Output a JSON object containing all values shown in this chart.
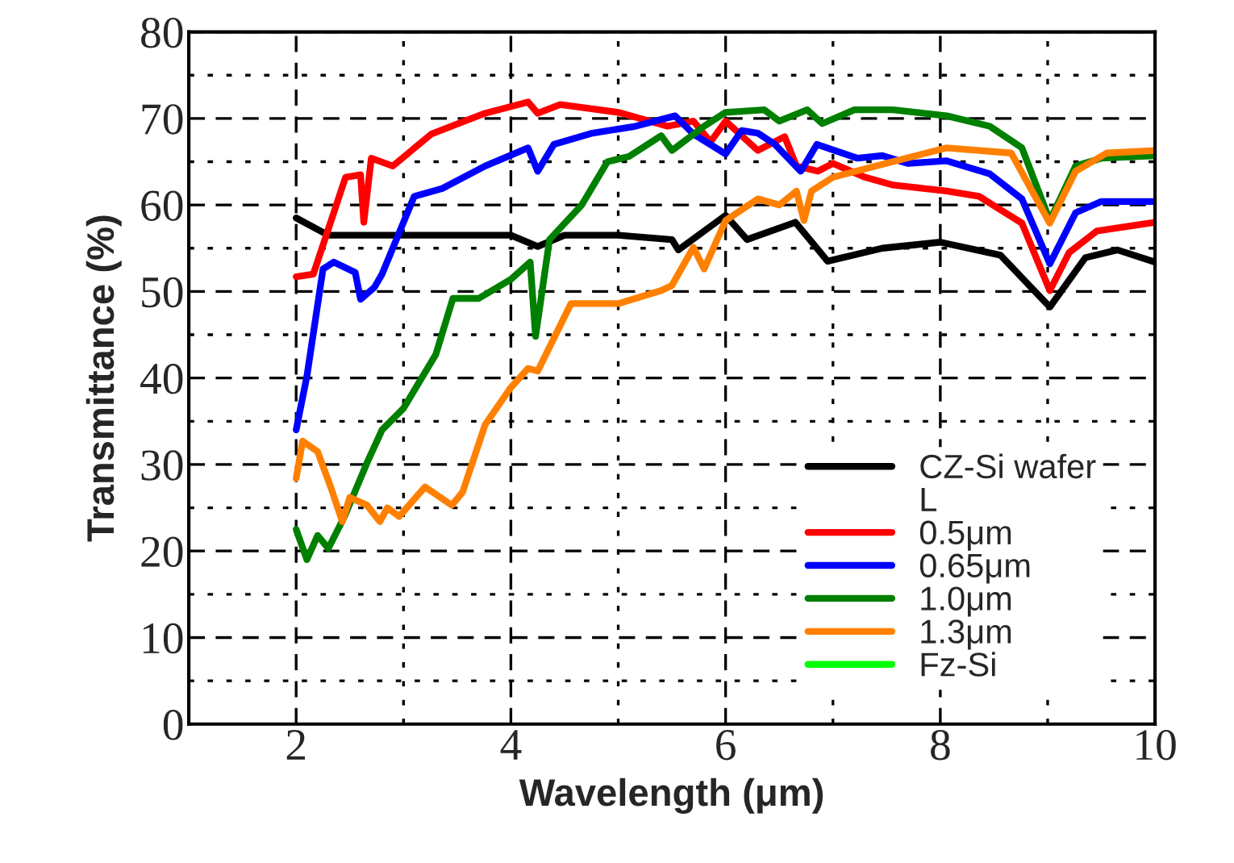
{
  "chart_data": {
    "type": "line",
    "xlabel": "Wavelength (μm)",
    "ylabel": "Transmittance (%)",
    "xlim": [
      1,
      10
    ],
    "xticks": [
      {
        "value": 1,
        "label": null
      },
      2,
      4,
      6,
      8,
      10
    ],
    "ylim": [
      0,
      80
    ],
    "yticks": [
      0,
      10,
      20,
      30,
      40,
      50,
      60,
      70,
      80
    ],
    "grid": true,
    "legend": "bottom right",
    "line_style": "solid",
    "series": [
      {
        "name": "CZ-Si wafer",
        "color": "#000000",
        "x": [
          2.0,
          2.3,
          3.0,
          4.0,
          4.25,
          4.5,
          5.0,
          5.5,
          5.56,
          6.0,
          6.2,
          6.65,
          6.95,
          7.46,
          8.0,
          8.56,
          9.02,
          9.35,
          9.65,
          10.0
        ],
        "values": [
          58.5,
          56.5,
          56.5,
          56.5,
          55.2,
          56.5,
          56.5,
          56.0,
          54.8,
          58.8,
          56.0,
          58.0,
          53.5,
          55.0,
          55.7,
          54.2,
          48.2,
          53.9,
          54.8,
          53.4
        ]
      },
      {
        "name": "L"
      },
      {
        "name": "0.5μm",
        "color": "#ff0000",
        "x": [
          2.0,
          2.16,
          2.46,
          2.6,
          2.63,
          2.7,
          2.9,
          3.26,
          3.76,
          4.16,
          4.25,
          4.46,
          5.0,
          5.46,
          5.7,
          5.86,
          6.0,
          6.3,
          6.55,
          6.66,
          6.86,
          7.0,
          7.3,
          7.56,
          8.06,
          8.36,
          8.76,
          9.02,
          9.2,
          9.46,
          10.0
        ],
        "values": [
          51.7,
          52.0,
          63.2,
          63.5,
          58.0,
          65.4,
          64.5,
          68.2,
          70.6,
          71.9,
          70.6,
          71.6,
          70.7,
          69.1,
          69.7,
          67.3,
          69.7,
          66.3,
          67.9,
          64.5,
          63.9,
          64.8,
          63.2,
          62.3,
          61.6,
          61.0,
          57.9,
          50.1,
          54.5,
          57.0,
          58.0
        ]
      },
      {
        "name": "0.65μm",
        "color": "#0000ff",
        "x": [
          2.0,
          2.1,
          2.25,
          2.35,
          2.55,
          2.6,
          2.73,
          2.8,
          3.1,
          3.36,
          3.76,
          4.16,
          4.25,
          4.4,
          4.76,
          5.16,
          5.53,
          5.7,
          6.0,
          6.15,
          6.3,
          6.46,
          6.7,
          6.85,
          7.23,
          7.46,
          7.7,
          8.06,
          8.46,
          8.76,
          9.02,
          9.26,
          9.5,
          10.0
        ],
        "values": [
          34.0,
          40.2,
          52.6,
          53.4,
          52.2,
          49.1,
          50.5,
          52.0,
          61.0,
          61.9,
          64.5,
          66.6,
          63.9,
          67.0,
          68.3,
          69.1,
          70.3,
          68.2,
          65.9,
          68.6,
          68.3,
          67.0,
          63.9,
          67.0,
          65.4,
          65.7,
          64.8,
          65.1,
          63.6,
          60.7,
          53.2,
          59.1,
          60.4,
          60.4
        ]
      },
      {
        "name": "1.0μm",
        "color": "#008000",
        "x": [
          2.0,
          2.1,
          2.2,
          2.3,
          2.45,
          2.66,
          2.8,
          3.0,
          3.3,
          3.46,
          3.7,
          4.0,
          4.18,
          4.23,
          4.36,
          4.66,
          4.9,
          5.1,
          5.4,
          5.5,
          5.8,
          6.0,
          6.36,
          6.5,
          6.76,
          6.9,
          7.2,
          7.56,
          8.06,
          8.46,
          8.76,
          9.02,
          9.26,
          9.5,
          10.0
        ],
        "values": [
          22.5,
          19.0,
          21.8,
          20.3,
          24.0,
          30.2,
          34.0,
          36.5,
          42.7,
          49.2,
          49.2,
          51.4,
          53.4,
          44.8,
          56.0,
          60.0,
          65.0,
          65.6,
          68.0,
          66.3,
          69.1,
          70.7,
          71.0,
          69.7,
          71.0,
          69.4,
          71.0,
          71.0,
          70.3,
          69.1,
          66.6,
          58.2,
          64.5,
          65.4,
          65.7
        ]
      },
      {
        "name": "1.3μm",
        "color": "#ff8000",
        "x": [
          2.0,
          2.06,
          2.2,
          2.33,
          2.43,
          2.5,
          2.66,
          2.78,
          2.85,
          2.96,
          3.2,
          3.45,
          3.55,
          3.76,
          4.0,
          4.16,
          4.25,
          4.56,
          5.0,
          5.4,
          5.5,
          5.7,
          5.8,
          6.0,
          6.3,
          6.5,
          6.66,
          6.73,
          6.8,
          7.0,
          7.46,
          8.06,
          8.66,
          9.02,
          9.26,
          9.55,
          10.0
        ],
        "values": [
          28.4,
          32.7,
          31.5,
          27.1,
          23.4,
          26.2,
          25.3,
          23.4,
          25.0,
          24.0,
          27.4,
          25.3,
          26.8,
          34.6,
          38.9,
          41.1,
          40.8,
          48.6,
          48.6,
          50.1,
          50.7,
          55.1,
          52.6,
          58.2,
          60.7,
          60.0,
          61.6,
          58.2,
          61.6,
          63.2,
          64.7,
          66.6,
          66.0,
          57.9,
          63.9,
          66.0,
          66.3
        ]
      },
      {
        "name": "Fz-Si",
        "color": "#00ff00"
      }
    ]
  }
}
